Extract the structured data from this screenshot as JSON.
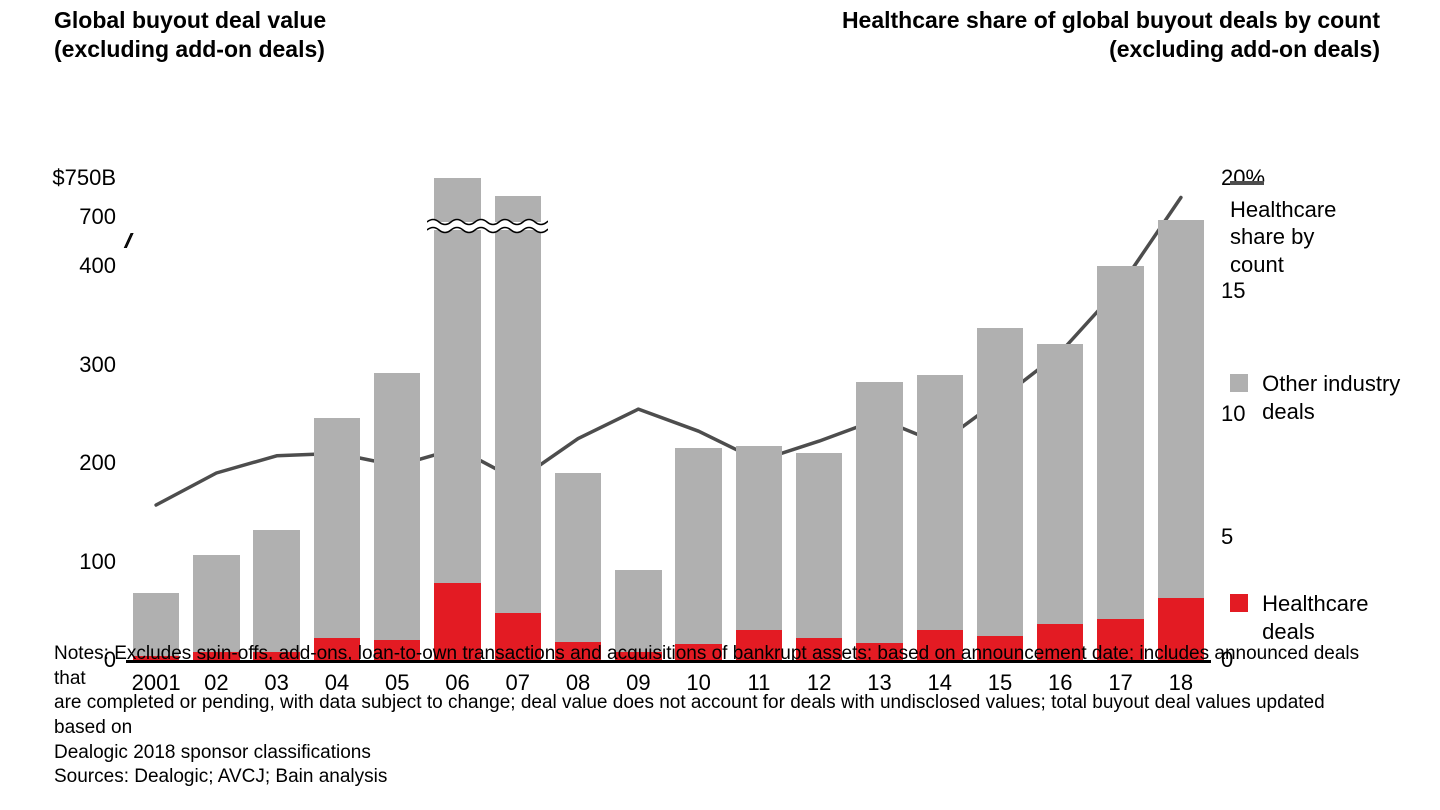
{
  "titles": {
    "left_line1": "Global buyout deal value",
    "left_line2": "(excluding add-on deals)",
    "right_line1": "Healthcare share of global buyout deals by count",
    "right_line2": "(excluding add-on deals)"
  },
  "chart": {
    "type": "stacked-bar-with-line-dual-axis",
    "background_color": "#ffffff",
    "bar_width_ratio": 0.77,
    "colors": {
      "healthcare": "#e31b23",
      "other": "#b0b0b0",
      "line": "#4d4d4d",
      "axis": "#000000",
      "text": "#000000"
    },
    "fontsize": {
      "title": 23,
      "axis": 22,
      "legend": 22,
      "notes": 19
    },
    "years": [
      "2001",
      "02",
      "03",
      "04",
      "05",
      "06",
      "07",
      "08",
      "09",
      "10",
      "11",
      "12",
      "13",
      "14",
      "15",
      "16",
      "17",
      "18"
    ],
    "left_axis": {
      "unit_top": "$750B",
      "ticks_main": [
        0,
        100,
        200,
        300,
        400
      ],
      "tick_broken_top": 700,
      "break_between": [
        400,
        700
      ],
      "max_plotted": 500
    },
    "right_axis": {
      "unit_top": "20%",
      "ticks": [
        0,
        5,
        10,
        15
      ],
      "max_plotted": 20
    },
    "bars_healthcare": [
      4,
      8,
      8,
      22,
      20,
      78,
      48,
      18,
      8,
      16,
      30,
      22,
      17,
      30,
      24,
      37,
      42,
      63
    ],
    "bars_total": [
      68,
      107,
      132,
      246,
      292,
      730,
      690,
      190,
      92,
      215,
      217,
      210,
      283,
      290,
      337,
      321,
      400,
      447
    ],
    "bars_total_drawn": [
      68,
      107,
      132,
      246,
      292,
      490,
      472,
      190,
      92,
      215,
      217,
      210,
      283,
      290,
      337,
      321,
      400,
      447
    ],
    "axis_break_cols": [
      0,
      0,
      0,
      0,
      0,
      1,
      1,
      0,
      0,
      0,
      0,
      0,
      0,
      0,
      0,
      0,
      0,
      0
    ],
    "line_share_pct": [
      6.3,
      7.6,
      8.3,
      8.4,
      7.9,
      8.6,
      7.3,
      9.0,
      10.2,
      9.3,
      8.1,
      8.9,
      9.8,
      8.8,
      10.6,
      12.5,
      15.2,
      18.8
    ]
  },
  "legend": {
    "line": "Healthcare share by count",
    "other": "Other industry deals",
    "healthcare": "Healthcare deals"
  },
  "notes": {
    "line1": "Notes: Excludes spin-offs, add-ons, loan-to-own transactions and acquisitions of bankrupt assets; based on announcement date; includes announced deals that",
    "line2": "are completed or pending, with data subject to change; deal value does not account for deals with undisclosed values; total buyout deal values updated based on",
    "line3": "Dealogic 2018 sponsor classifications",
    "sources": "Sources: Dealogic; AVCJ; Bain analysis"
  }
}
